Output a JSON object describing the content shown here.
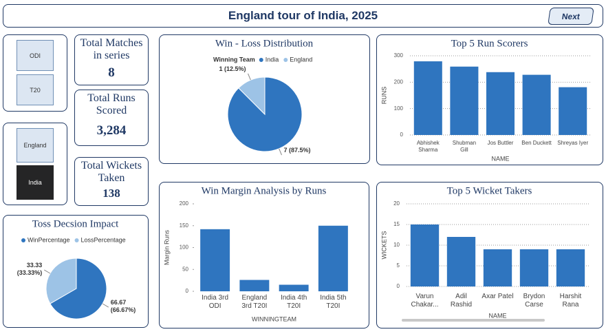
{
  "header": {
    "title": "England tour of India, 2025",
    "button": "Next"
  },
  "slicers": {
    "format": [
      "ODI",
      "T20"
    ],
    "team": [
      "England",
      "India"
    ],
    "team_selected": "India"
  },
  "cards": [
    {
      "title": "Total Matches in series",
      "value": "8"
    },
    {
      "title": "Total Runs Scored",
      "value": "3,284"
    },
    {
      "title": "Total Wickets Taken",
      "value": "138"
    }
  ],
  "chart_data": [
    {
      "type": "pie",
      "title": "Win - Loss Distribution",
      "legend_title": "Winning Team",
      "categories": [
        "India",
        "England"
      ],
      "values": [
        7,
        1
      ],
      "value_labels": [
        "7 (87.5%)",
        "1 (12.5%)"
      ],
      "colors": [
        "#2f75bf",
        "#9dc3e6"
      ]
    },
    {
      "type": "bar",
      "title": "Top 5 Run Scorers",
      "categories": [
        "Abhishek Sharma",
        "Shubman Gill",
        "Jos Buttler",
        "Ben Duckett",
        "Shreyas Iyer"
      ],
      "values": [
        279,
        259,
        238,
        228,
        181
      ],
      "color": "#2f75bf",
      "ylim": [
        0,
        300
      ],
      "yticks": [
        0,
        100,
        200,
        300
      ],
      "y_label": "RUNS",
      "x_label": "NAME",
      "grid": true
    },
    {
      "type": "pie",
      "title": "Toss Decsion Impact",
      "categories": [
        "WinPercentage",
        "LossPercentage"
      ],
      "values": [
        66.67,
        33.33
      ],
      "value_labels": [
        "66.67 (66.67%)",
        "33.33 (33.33%)"
      ],
      "colors": [
        "#2f75bf",
        "#9dc3e6"
      ]
    },
    {
      "type": "bar",
      "title": "Win Margin Analysis by Runs",
      "categories": [
        "India 3rd ODI",
        "England 3rd T20I",
        "India 4th T20I",
        "India 5th T20I"
      ],
      "values": [
        142,
        26,
        15,
        150
      ],
      "color": "#2f75bf",
      "ylim": [
        0,
        200
      ],
      "yticks": [
        0,
        50,
        100,
        150,
        200
      ],
      "y_label": "Margin Runs",
      "x_label": "WINNINGTEAM",
      "grid": false
    },
    {
      "type": "bar",
      "title": "Top 5 Wicket Takers",
      "categories": [
        "Varun Chakar...",
        "Adil Rashid",
        "Axar Patel",
        "Brydon Carse",
        "Harshit Rana"
      ],
      "values": [
        15,
        12,
        9,
        9,
        9
      ],
      "color": "#2f75bf",
      "ylim": [
        0,
        20
      ],
      "yticks": [
        0,
        5,
        10,
        15,
        20
      ],
      "y_label": "WICKETS",
      "x_label": "NAME",
      "grid": true
    }
  ]
}
